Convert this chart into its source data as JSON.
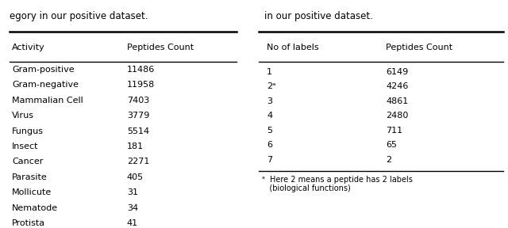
{
  "left_table": {
    "caption": "egory in our positive dataset.",
    "header": [
      "Activity",
      "Peptides Count"
    ],
    "rows": [
      [
        "Gram-positive",
        "11486"
      ],
      [
        "Gram-negative",
        "11958"
      ],
      [
        "Mammalian Cell",
        "7403"
      ],
      [
        "Virus",
        "3779"
      ],
      [
        "Fungus",
        "5514"
      ],
      [
        "Insect",
        "181"
      ],
      [
        "Cancer",
        "2271"
      ],
      [
        "Parasite",
        "405"
      ],
      [
        "Mollicute",
        "31"
      ],
      [
        "Nematode",
        "34"
      ],
      [
        "Protista",
        "41"
      ]
    ]
  },
  "right_table": {
    "caption": "in our positive dataset.",
    "header": [
      "No of labels",
      "Peptides Count"
    ],
    "rows": [
      [
        "1",
        "6149"
      ],
      [
        "2ᵃ",
        "4246"
      ],
      [
        "3",
        "4861"
      ],
      [
        "4",
        "2480"
      ],
      [
        "5",
        "711"
      ],
      [
        "6",
        "65"
      ],
      [
        "7",
        "2"
      ]
    ],
    "footnote_super": "ᵃ",
    "footnote_text": "  Here 2 means a peptide has 2 labels\n   (biological functions)"
  },
  "bg_color": "#ffffff",
  "text_color": "#000000",
  "font_size": 8.0,
  "caption_font_size": 8.5
}
